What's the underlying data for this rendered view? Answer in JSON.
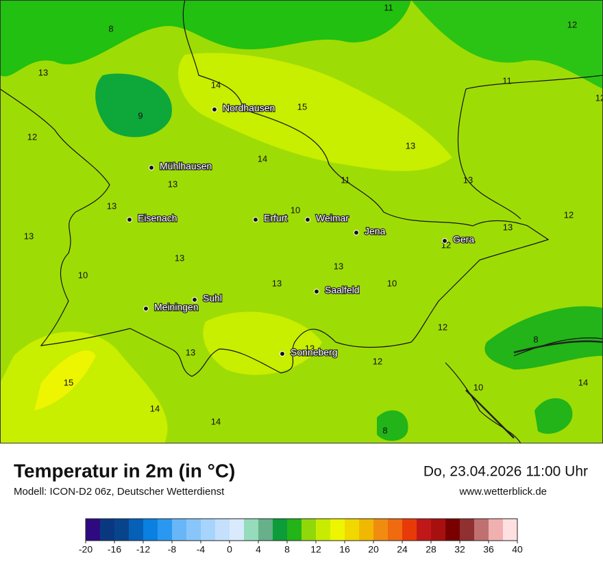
{
  "header": {
    "title": "Temperatur in 2m (in °C)",
    "subtitle": "Modell: ICON-D2 06z, Deutscher Wetterdienst",
    "datetime": "Do, 23.04.2026 11:00 Uhr",
    "website": "www.wetterblick.de"
  },
  "map": {
    "cities": [
      "Nordhausen",
      "Mühlhausen",
      "Eisenach",
      "Erfurt",
      "Weimar",
      "Jena",
      "Gera",
      "Saalfeld",
      "Suhl",
      "Meiningen",
      "Sonneberg"
    ],
    "temperatures": [
      11,
      12,
      8,
      13,
      14,
      11,
      12,
      15,
      9,
      12,
      13,
      14,
      11,
      13,
      13,
      13,
      10,
      12,
      13,
      13,
      12,
      13,
      13,
      10,
      13,
      10,
      12,
      8,
      13,
      13,
      12,
      15,
      10,
      14,
      14,
      14,
      8
    ]
  },
  "colorbar": {
    "ticks": [
      -20,
      -16,
      -12,
      -8,
      -4,
      0,
      4,
      8,
      12,
      16,
      20,
      24,
      28,
      32,
      36,
      40
    ],
    "step": 2,
    "colors": [
      "#2e0a80",
      "#0a3880",
      "#08448c",
      "#0660b8",
      "#0a80e0",
      "#2a98f0",
      "#68b6f8",
      "#88c6fa",
      "#a6d4fc",
      "#c4e0fd",
      "#d8eafc",
      "#96dcbc",
      "#66b08a",
      "#0c9c3a",
      "#22b418",
      "#90d80a",
      "#c8ec00",
      "#eef500",
      "#f0d800",
      "#f0b800",
      "#f08c10",
      "#f06a10",
      "#e83a08",
      "#c01818",
      "#a81010",
      "#7a0000",
      "#903030",
      "#c07070",
      "#f0b0b0",
      "#ffe0e0"
    ]
  }
}
